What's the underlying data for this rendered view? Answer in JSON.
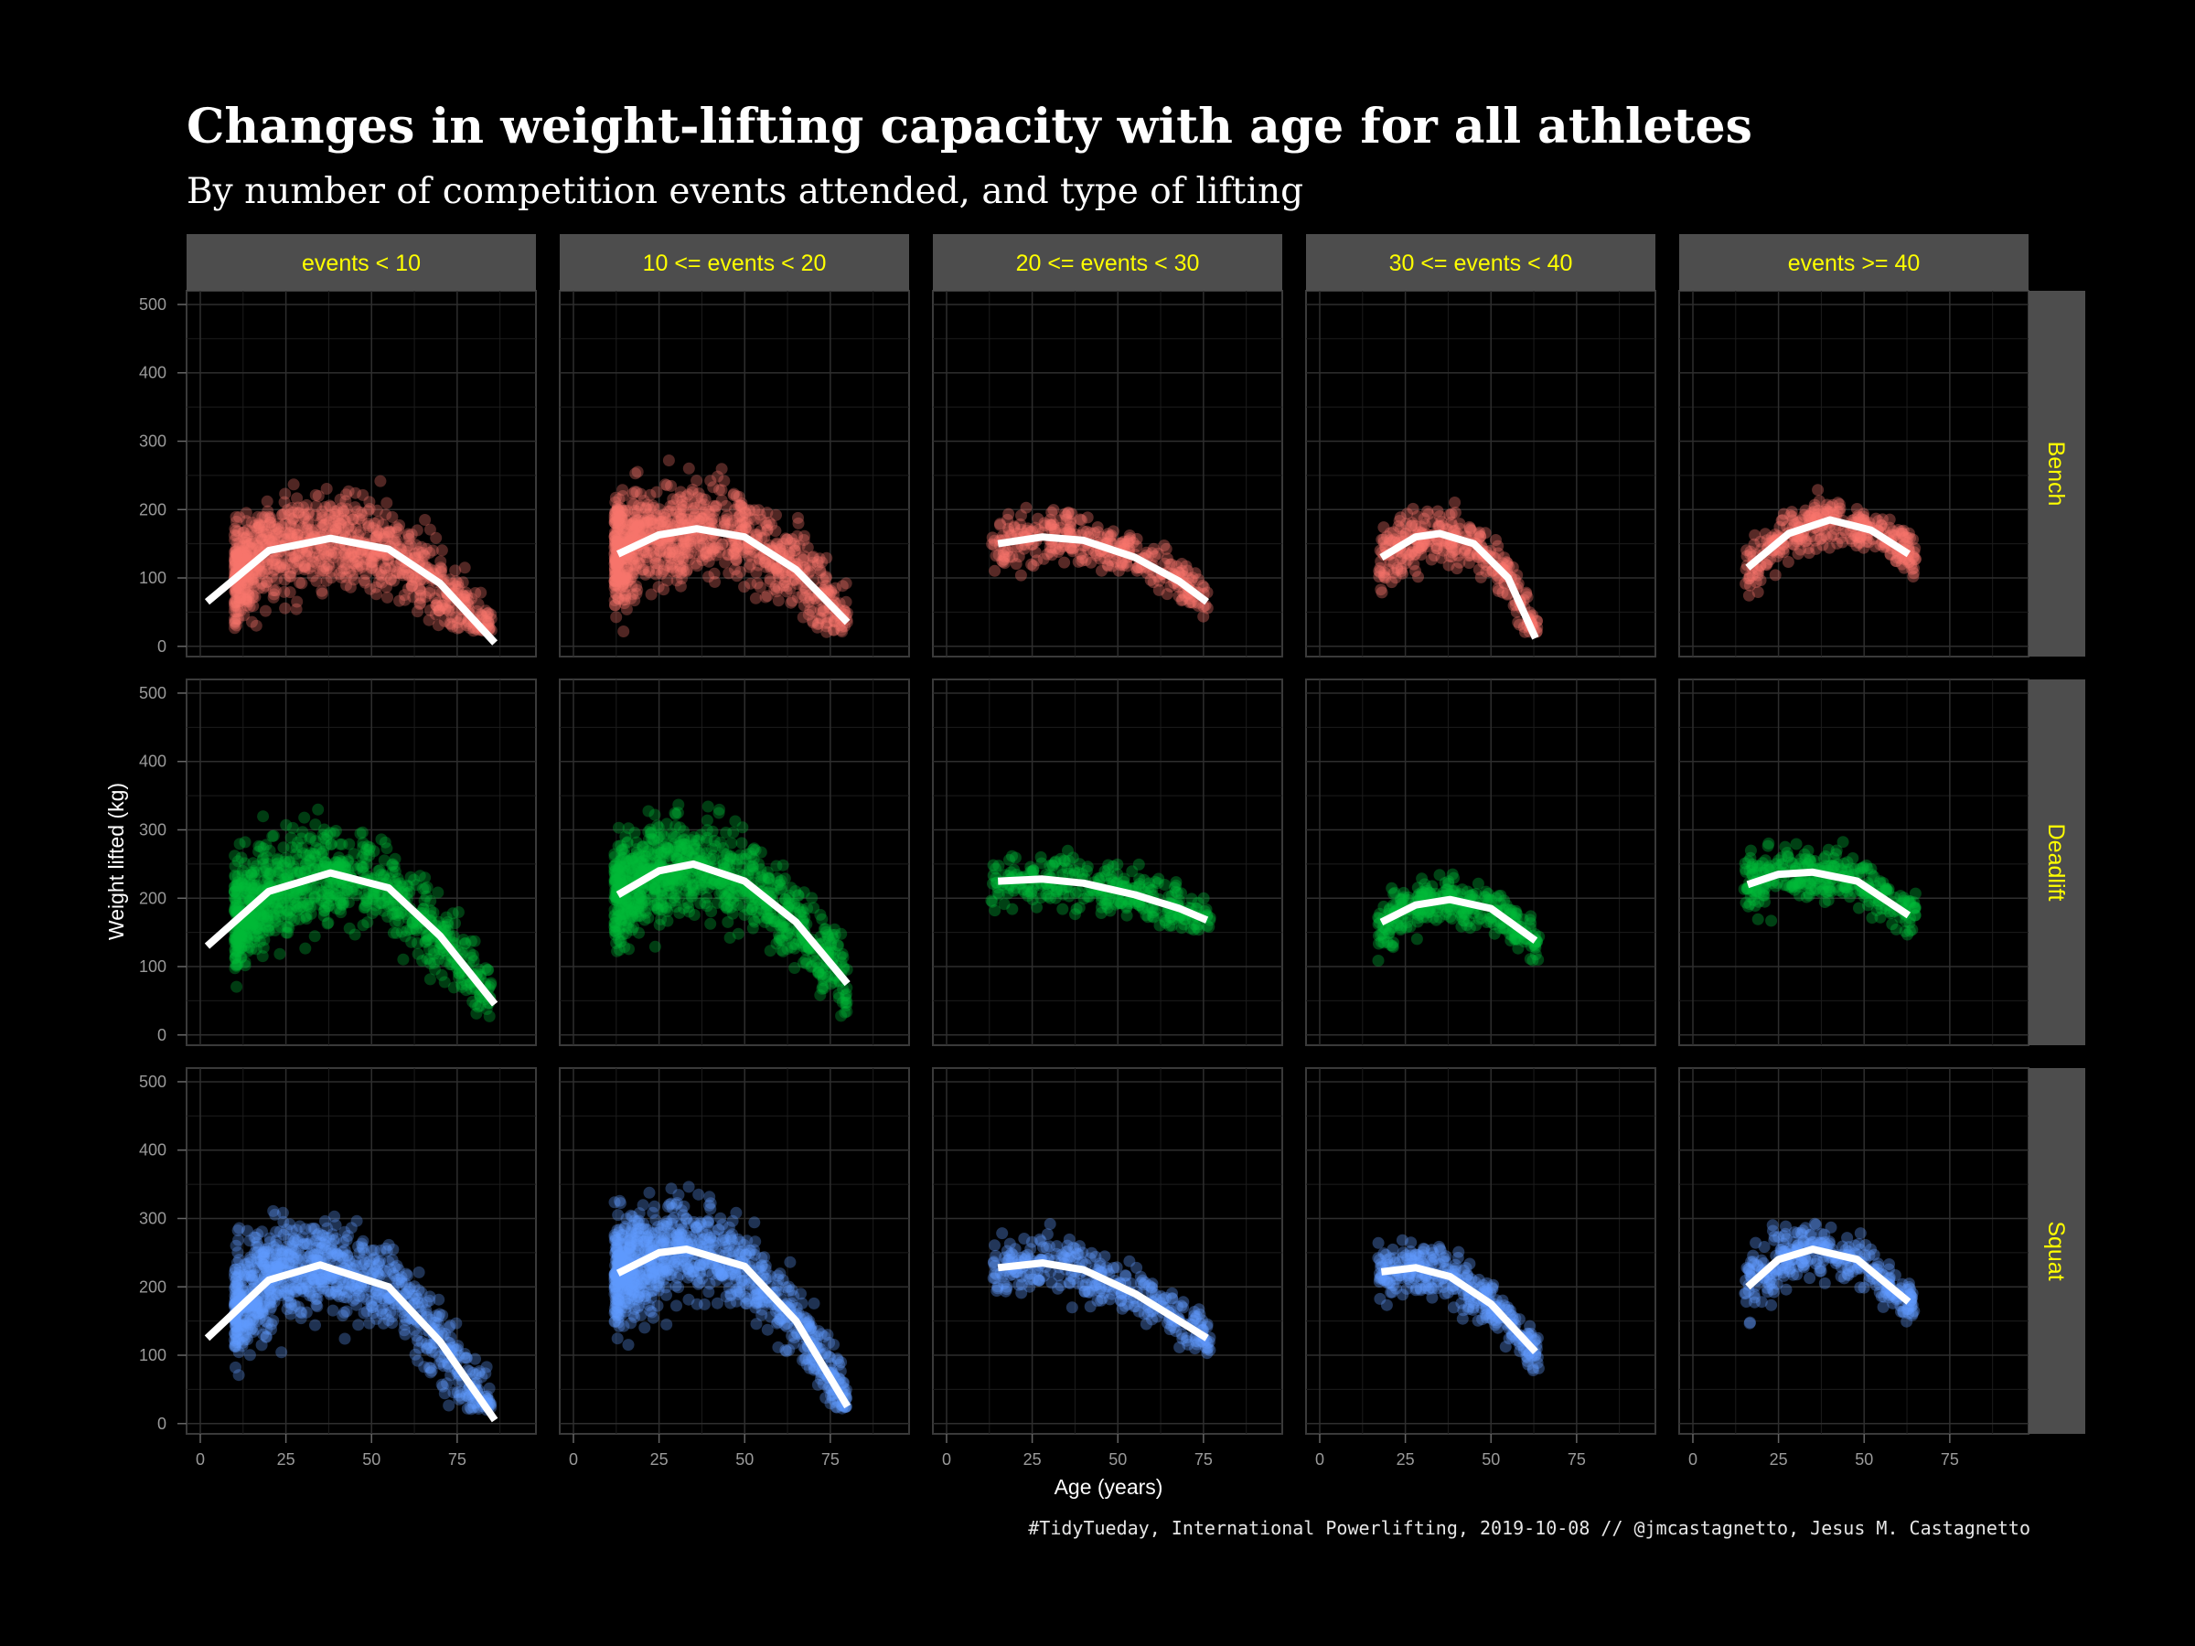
{
  "chart_data": {
    "type": "scatter",
    "title": "Changes in weight-lifting capacity with age for all athletes",
    "subtitle": "By number of competition events attended, and type of lifting",
    "caption": "#TidyTueday, International Powerlifting, 2019-10-08 // @jmcastagnetto, Jesus M. Castagnetto",
    "xlabel": "Age (years)",
    "ylabel": "Weight lifted (kg)",
    "xlim": [
      -4,
      98
    ],
    "ylim": [
      -15,
      520
    ],
    "xticks": [
      0,
      25,
      50,
      75
    ],
    "yticks": [
      0,
      100,
      200,
      300,
      400,
      500
    ],
    "grid": true,
    "facet_columns": [
      "events < 10",
      "10 <= events < 20",
      "20 <= events < 30",
      "30 <= events < 40",
      "events >= 40"
    ],
    "facet_rows": [
      "Bench",
      "Deadlift",
      "Squat"
    ],
    "colors": {
      "Bench": "#f8766d",
      "Deadlift": "#00ba38",
      "Squat": "#619cff",
      "fit": "#ffffff",
      "strip_bg": "#4d4d4d",
      "strip_text": "#ffff00"
    },
    "panels": {
      "Bench": [
        {
          "xr": [
            10,
            85
          ],
          "fit": [
            [
              2,
              65
            ],
            [
              20,
              140
            ],
            [
              38,
              158
            ],
            [
              55,
              142
            ],
            [
              70,
              92
            ],
            [
              86,
              5
            ]
          ]
        },
        {
          "xr": [
            12,
            80
          ],
          "fit": [
            [
              13,
              135
            ],
            [
              25,
              163
            ],
            [
              36,
              172
            ],
            [
              50,
              160
            ],
            [
              65,
              112
            ],
            [
              80,
              35
            ]
          ]
        },
        {
          "xr": [
            13,
            77
          ],
          "fit": [
            [
              15,
              150
            ],
            [
              28,
              160
            ],
            [
              40,
              155
            ],
            [
              55,
              130
            ],
            [
              68,
              95
            ],
            [
              76,
              65
            ]
          ]
        },
        {
          "xr": [
            17,
            64
          ],
          "fit": [
            [
              18,
              130
            ],
            [
              28,
              160
            ],
            [
              35,
              165
            ],
            [
              45,
              150
            ],
            [
              55,
              100
            ],
            [
              63,
              12
            ]
          ]
        },
        {
          "xr": [
            15,
            65
          ],
          "fit": [
            [
              16,
              115
            ],
            [
              28,
              165
            ],
            [
              40,
              185
            ],
            [
              52,
              170
            ],
            [
              63,
              135
            ]
          ]
        }
      ],
      "Deadlift": [
        {
          "xr": [
            10,
            85
          ],
          "fit": [
            [
              2,
              130
            ],
            [
              20,
              210
            ],
            [
              38,
              237
            ],
            [
              55,
              215
            ],
            [
              70,
              145
            ],
            [
              86,
              45
            ]
          ]
        },
        {
          "xr": [
            12,
            80
          ],
          "fit": [
            [
              13,
              205
            ],
            [
              25,
              240
            ],
            [
              35,
              250
            ],
            [
              50,
              225
            ],
            [
              65,
              165
            ],
            [
              80,
              75
            ]
          ]
        },
        {
          "xr": [
            13,
            77
          ],
          "fit": [
            [
              15,
              225
            ],
            [
              28,
              228
            ],
            [
              40,
              222
            ],
            [
              55,
              205
            ],
            [
              68,
              185
            ],
            [
              76,
              168
            ]
          ]
        },
        {
          "xr": [
            17,
            64
          ],
          "fit": [
            [
              18,
              165
            ],
            [
              28,
              190
            ],
            [
              38,
              198
            ],
            [
              50,
              185
            ],
            [
              63,
              138
            ]
          ]
        },
        {
          "xr": [
            15,
            65
          ],
          "fit": [
            [
              16,
              220
            ],
            [
              25,
              235
            ],
            [
              35,
              238
            ],
            [
              48,
              225
            ],
            [
              63,
              175
            ]
          ]
        }
      ],
      "Squat": [
        {
          "xr": [
            10,
            85
          ],
          "fit": [
            [
              2,
              125
            ],
            [
              20,
              210
            ],
            [
              35,
              232
            ],
            [
              55,
              200
            ],
            [
              70,
              120
            ],
            [
              86,
              5
            ]
          ]
        },
        {
          "xr": [
            12,
            80
          ],
          "fit": [
            [
              13,
              220
            ],
            [
              25,
              250
            ],
            [
              33,
              255
            ],
            [
              50,
              230
            ],
            [
              65,
              150
            ],
            [
              80,
              25
            ]
          ]
        },
        {
          "xr": [
            13,
            77
          ],
          "fit": [
            [
              15,
              228
            ],
            [
              28,
              235
            ],
            [
              40,
              225
            ],
            [
              55,
              190
            ],
            [
              68,
              150
            ],
            [
              76,
              125
            ]
          ]
        },
        {
          "xr": [
            17,
            64
          ],
          "fit": [
            [
              18,
              222
            ],
            [
              28,
              228
            ],
            [
              38,
              215
            ],
            [
              50,
              175
            ],
            [
              63,
              105
            ]
          ]
        },
        {
          "xr": [
            15,
            65
          ],
          "fit": [
            [
              16,
              200
            ],
            [
              25,
              240
            ],
            [
              35,
              255
            ],
            [
              48,
              240
            ],
            [
              63,
              178
            ]
          ]
        }
      ]
    }
  }
}
